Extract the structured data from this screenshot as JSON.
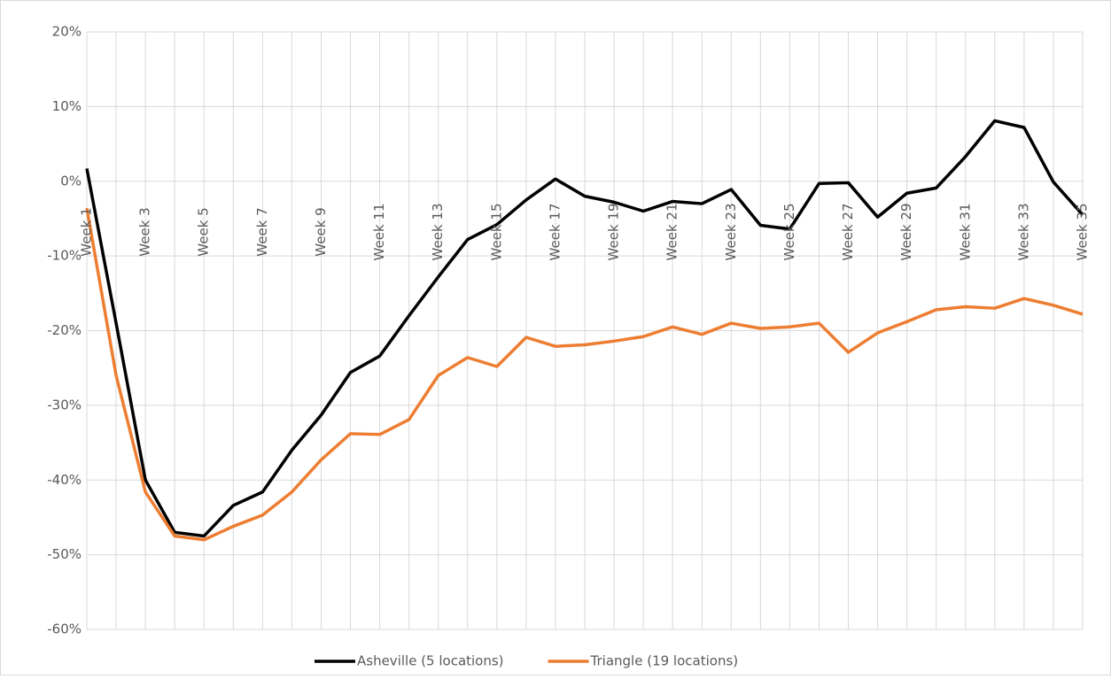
{
  "chart_data": {
    "type": "line",
    "categories": [
      "Week 1",
      null,
      "Week 3",
      null,
      "Week 5",
      null,
      "Week 7",
      null,
      "Week 9",
      null,
      "Week 11",
      null,
      "Week 13",
      null,
      "Week 15",
      null,
      "Week 17",
      null,
      "Week 19",
      null,
      "Week 21",
      null,
      "Week 23",
      null,
      "Week 25",
      null,
      "Week 27",
      null,
      "Week 29",
      null,
      "Week 31",
      null,
      "Week 33",
      null,
      "Week 35"
    ],
    "series": [
      {
        "name": "Asheville (5 locations)",
        "color": "#000000",
        "values": [
          1.7,
          -19,
          -40,
          -47,
          -47.5,
          -43.4,
          -41.6,
          -36,
          -31.3,
          -25.6,
          -23.4,
          -18,
          -12.8,
          -7.8,
          -5.8,
          -2.5,
          0.3,
          -2,
          -2.8,
          -4,
          -2.7,
          -3,
          -1.1,
          -5.9,
          -6.4,
          -0.3,
          -0.2,
          -4.8,
          -1.6,
          -0.9,
          3.3,
          8.1,
          7.2,
          -0.1,
          -4.5
        ]
      },
      {
        "name": "Triangle (19 locations)",
        "color": "#ed7d31",
        "values": [
          -3.6,
          -26,
          -41.6,
          -47.5,
          -48,
          -46.2,
          -44.7,
          -41.6,
          -37.3,
          -33.8,
          -33.9,
          -31.9,
          -26,
          -23.6,
          -24.8,
          -20.9,
          -22.1,
          -21.9,
          -21.4,
          -20.8,
          -19.5,
          -20.5,
          -19,
          -19.7,
          -19.5,
          -19,
          -22.9,
          -20.3,
          -18.8,
          -17.2,
          -16.8,
          -17,
          -15.7,
          -16.6,
          -17.8
        ]
      }
    ],
    "ylim": [
      -60,
      20
    ],
    "yticks": [
      {
        "value": -60,
        "label": "-60%"
      },
      {
        "value": -50,
        "label": "-50%"
      },
      {
        "value": -40,
        "label": "-40%"
      },
      {
        "value": -30,
        "label": "-30%"
      },
      {
        "value": -20,
        "label": "-20%"
      },
      {
        "value": -10,
        "label": "-10%"
      },
      {
        "value": 0,
        "label": "0%"
      },
      {
        "value": 10,
        "label": "10%"
      },
      {
        "value": 20,
        "label": "20%"
      }
    ],
    "grid": true,
    "legend": "bottom"
  }
}
